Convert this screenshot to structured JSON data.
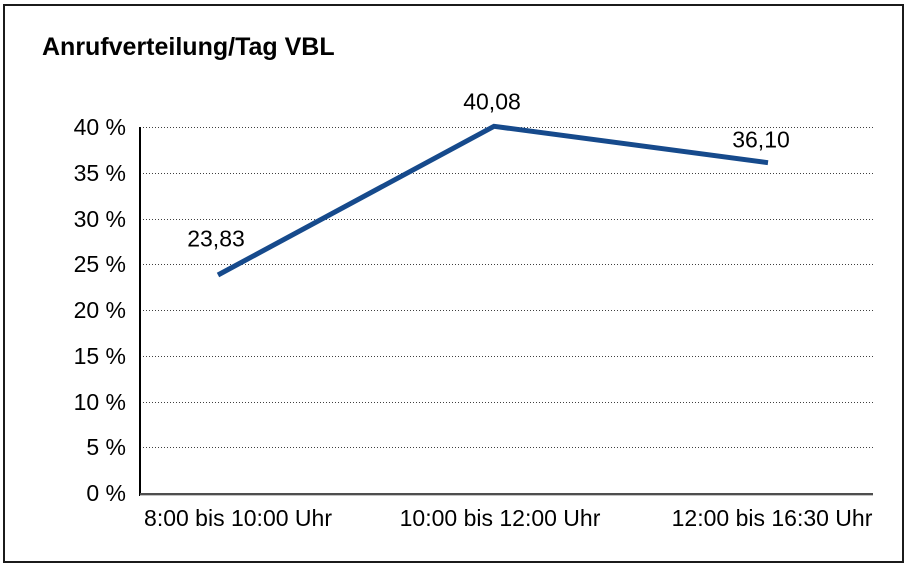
{
  "window": {
    "background": "#ffffff",
    "border_color": "#1b1b1b"
  },
  "chart_data": {
    "type": "line",
    "title": "Anrufverteilung/Tag VBL",
    "categories": [
      "8:00 bis 10:00 Uhr",
      "10:00 bis 12:00 Uhr",
      "12:00 bis 16:30 Uhr"
    ],
    "series": [
      {
        "name": "Anrufverteilung/Tag VBL",
        "values": [
          23.83,
          40.08,
          36.1
        ],
        "color": "#164a8c"
      }
    ],
    "data_labels": [
      "23,83",
      "40,08",
      "36,10"
    ],
    "xlabel": "",
    "ylabel": "",
    "y_ticks": [
      "0 %",
      "5 %",
      "10 %",
      "15 %",
      "20 %",
      "25 %",
      "30 %",
      "35 %",
      "40 %"
    ],
    "ylim": [
      0,
      40
    ],
    "y_tick_step": 5,
    "grid": {
      "horizontal": true,
      "vertical": false,
      "style": "dotted"
    },
    "legend_position": "none",
    "colors": {
      "line": "#164a8c",
      "gridline": "#3f3f3f",
      "y_axis": "#000000",
      "x_baseline": "#4e4e4e",
      "text": "#000000"
    }
  }
}
